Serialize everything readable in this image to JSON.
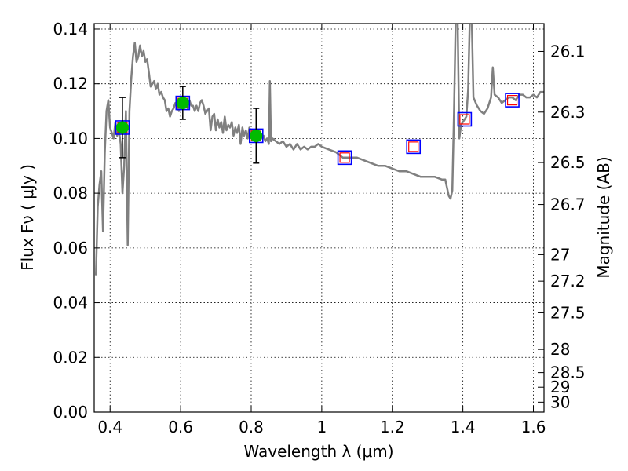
{
  "chart_data": {
    "type": "scatter",
    "xlabel": "Wavelength  λ (μm)",
    "ylabel": "Flux  Fν  ( μJy )",
    "ylabel_right": "Magnitude (AB)",
    "xlim": [
      0.355,
      1.63
    ],
    "ylim": [
      0.0,
      0.142
    ],
    "grid": true,
    "x_ticks": [
      {
        "value": 0.4,
        "label": "0.4"
      },
      {
        "value": 0.6,
        "label": "0.6"
      },
      {
        "value": 0.8,
        "label": "0.8"
      },
      {
        "value": 1.0,
        "label": "1"
      },
      {
        "value": 1.2,
        "label": "1.2"
      },
      {
        "value": 1.4,
        "label": "1.4"
      },
      {
        "value": 1.6,
        "label": "1.6"
      }
    ],
    "y_ticks": [
      {
        "value": 0.0,
        "label": "0.00"
      },
      {
        "value": 0.02,
        "label": "0.02"
      },
      {
        "value": 0.04,
        "label": "0.04"
      },
      {
        "value": 0.06,
        "label": "0.06"
      },
      {
        "value": 0.08,
        "label": "0.08"
      },
      {
        "value": 0.1,
        "label": "0.10"
      },
      {
        "value": 0.12,
        "label": "0.12"
      },
      {
        "value": 0.14,
        "label": "0.14"
      }
    ],
    "right_ticks": [
      {
        "mag": 26.1,
        "label": "26.1"
      },
      {
        "mag": 26.3,
        "label": "26.3"
      },
      {
        "mag": 26.5,
        "label": "26.5"
      },
      {
        "mag": 26.7,
        "label": "26.7"
      },
      {
        "mag": 27.0,
        "label": "27"
      },
      {
        "mag": 27.2,
        "label": "27.2"
      },
      {
        "mag": 27.5,
        "label": "27.5"
      },
      {
        "mag": 28.0,
        "label": "28"
      },
      {
        "mag": 28.5,
        "label": "28.5"
      },
      {
        "mag": 29.0,
        "label": "29"
      },
      {
        "mag": 30.0,
        "label": "30"
      }
    ],
    "colors": {
      "model": "#808080",
      "observed": "#00bb00",
      "box_blue": "#0000ff",
      "box_red": "#ff0000",
      "errorbar": "#000000"
    },
    "series": [
      {
        "style": "line",
        "values": [
          [
            0.36,
            0.05
          ],
          [
            0.365,
            0.075
          ],
          [
            0.37,
            0.083
          ],
          [
            0.375,
            0.088
          ],
          [
            0.38,
            0.066
          ],
          [
            0.385,
            0.095
          ],
          [
            0.39,
            0.11
          ],
          [
            0.395,
            0.114
          ],
          [
            0.4,
            0.104
          ],
          [
            0.405,
            0.102
          ],
          [
            0.41,
            0.1
          ],
          [
            0.415,
            0.106
          ],
          [
            0.42,
            0.101
          ],
          [
            0.425,
            0.103
          ],
          [
            0.43,
            0.098
          ],
          [
            0.435,
            0.08
          ],
          [
            0.44,
            0.09
          ],
          [
            0.445,
            0.11
          ],
          [
            0.45,
            0.061
          ],
          [
            0.455,
            0.11
          ],
          [
            0.46,
            0.122
          ],
          [
            0.465,
            0.13
          ],
          [
            0.47,
            0.135
          ],
          [
            0.475,
            0.128
          ],
          [
            0.48,
            0.13
          ],
          [
            0.485,
            0.134
          ],
          [
            0.49,
            0.13
          ],
          [
            0.495,
            0.132
          ],
          [
            0.5,
            0.128
          ],
          [
            0.505,
            0.129
          ],
          [
            0.51,
            0.124
          ],
          [
            0.515,
            0.119
          ],
          [
            0.52,
            0.12
          ],
          [
            0.525,
            0.121
          ],
          [
            0.53,
            0.118
          ],
          [
            0.535,
            0.12
          ],
          [
            0.54,
            0.116
          ],
          [
            0.545,
            0.117
          ],
          [
            0.55,
            0.115
          ],
          [
            0.555,
            0.114
          ],
          [
            0.56,
            0.11
          ],
          [
            0.565,
            0.111
          ],
          [
            0.57,
            0.108
          ],
          [
            0.575,
            0.11
          ],
          [
            0.58,
            0.111
          ],
          [
            0.585,
            0.113
          ],
          [
            0.59,
            0.112
          ],
          [
            0.595,
            0.11
          ],
          [
            0.6,
            0.113
          ],
          [
            0.605,
            0.111
          ],
          [
            0.61,
            0.114
          ],
          [
            0.615,
            0.113
          ],
          [
            0.62,
            0.111
          ],
          [
            0.625,
            0.114
          ],
          [
            0.63,
            0.112
          ],
          [
            0.635,
            0.112
          ],
          [
            0.64,
            0.11
          ],
          [
            0.645,
            0.112
          ],
          [
            0.65,
            0.11
          ],
          [
            0.655,
            0.113
          ],
          [
            0.66,
            0.114
          ],
          [
            0.665,
            0.112
          ],
          [
            0.67,
            0.109
          ],
          [
            0.675,
            0.11
          ],
          [
            0.68,
            0.111
          ],
          [
            0.685,
            0.103
          ],
          [
            0.69,
            0.108
          ],
          [
            0.695,
            0.109
          ],
          [
            0.7,
            0.103
          ],
          [
            0.705,
            0.107
          ],
          [
            0.71,
            0.104
          ],
          [
            0.715,
            0.106
          ],
          [
            0.72,
            0.102
          ],
          [
            0.725,
            0.108
          ],
          [
            0.73,
            0.103
          ],
          [
            0.735,
            0.105
          ],
          [
            0.74,
            0.104
          ],
          [
            0.745,
            0.106
          ],
          [
            0.75,
            0.101
          ],
          [
            0.755,
            0.104
          ],
          [
            0.76,
            0.102
          ],
          [
            0.765,
            0.105
          ],
          [
            0.77,
            0.098
          ],
          [
            0.775,
            0.104
          ],
          [
            0.78,
            0.101
          ],
          [
            0.785,
            0.103
          ],
          [
            0.79,
            0.1
          ],
          [
            0.795,
            0.104
          ],
          [
            0.8,
            0.102
          ],
          [
            0.805,
            0.103
          ],
          [
            0.81,
            0.101
          ],
          [
            0.815,
            0.102
          ],
          [
            0.82,
            0.1
          ],
          [
            0.825,
            0.102
          ],
          [
            0.83,
            0.1
          ],
          [
            0.835,
            0.101
          ],
          [
            0.84,
            0.099
          ],
          [
            0.845,
            0.1
          ],
          [
            0.85,
            0.098
          ],
          [
            0.853,
            0.121
          ],
          [
            0.856,
            0.099
          ],
          [
            0.86,
            0.1
          ],
          [
            0.87,
            0.099
          ],
          [
            0.88,
            0.098
          ],
          [
            0.89,
            0.099
          ],
          [
            0.9,
            0.097
          ],
          [
            0.91,
            0.098
          ],
          [
            0.92,
            0.096
          ],
          [
            0.93,
            0.098
          ],
          [
            0.94,
            0.096
          ],
          [
            0.95,
            0.097
          ],
          [
            0.96,
            0.096
          ],
          [
            0.97,
            0.097
          ],
          [
            0.98,
            0.097
          ],
          [
            0.99,
            0.098
          ],
          [
            1.0,
            0.097
          ],
          [
            1.02,
            0.096
          ],
          [
            1.04,
            0.095
          ],
          [
            1.06,
            0.093
          ],
          [
            1.08,
            0.093
          ],
          [
            1.1,
            0.093
          ],
          [
            1.12,
            0.092
          ],
          [
            1.14,
            0.091
          ],
          [
            1.16,
            0.09
          ],
          [
            1.18,
            0.09
          ],
          [
            1.2,
            0.089
          ],
          [
            1.22,
            0.088
          ],
          [
            1.24,
            0.088
          ],
          [
            1.26,
            0.087
          ],
          [
            1.28,
            0.086
          ],
          [
            1.3,
            0.086
          ],
          [
            1.32,
            0.086
          ],
          [
            1.34,
            0.085
          ],
          [
            1.35,
            0.085
          ],
          [
            1.36,
            0.079
          ],
          [
            1.365,
            0.078
          ],
          [
            1.37,
            0.081
          ],
          [
            1.375,
            0.11
          ],
          [
            1.38,
            0.145
          ],
          [
            1.385,
            0.145
          ],
          [
            1.39,
            0.1
          ],
          [
            1.395,
            0.105
          ],
          [
            1.4,
            0.106
          ],
          [
            1.405,
            0.107
          ],
          [
            1.41,
            0.108
          ],
          [
            1.415,
            0.118
          ],
          [
            1.42,
            0.145
          ],
          [
            1.425,
            0.145
          ],
          [
            1.43,
            0.115
          ],
          [
            1.44,
            0.112
          ],
          [
            1.45,
            0.11
          ],
          [
            1.46,
            0.109
          ],
          [
            1.47,
            0.111
          ],
          [
            1.48,
            0.115
          ],
          [
            1.485,
            0.126
          ],
          [
            1.49,
            0.116
          ],
          [
            1.5,
            0.115
          ],
          [
            1.51,
            0.113
          ],
          [
            1.52,
            0.114
          ],
          [
            1.53,
            0.115
          ],
          [
            1.54,
            0.115
          ],
          [
            1.55,
            0.114
          ],
          [
            1.56,
            0.116
          ],
          [
            1.57,
            0.116
          ],
          [
            1.58,
            0.115
          ],
          [
            1.59,
            0.115
          ],
          [
            1.6,
            0.116
          ],
          [
            1.61,
            0.115
          ],
          [
            1.62,
            0.117
          ],
          [
            1.63,
            0.117
          ]
        ]
      },
      {
        "style": "points-with-errorbars",
        "points": [
          {
            "x": 0.435,
            "y": 0.104,
            "err": 0.011
          },
          {
            "x": 0.606,
            "y": 0.113,
            "err": 0.006
          },
          {
            "x": 0.814,
            "y": 0.101,
            "err": 0.01
          }
        ]
      },
      {
        "style": "open-squares-blue",
        "points": [
          {
            "x": 0.435,
            "y": 0.104
          },
          {
            "x": 0.606,
            "y": 0.113
          },
          {
            "x": 0.814,
            "y": 0.101
          },
          {
            "x": 1.065,
            "y": 0.093
          },
          {
            "x": 1.26,
            "y": 0.097
          },
          {
            "x": 1.405,
            "y": 0.107
          },
          {
            "x": 1.54,
            "y": 0.114
          }
        ]
      },
      {
        "style": "open-squares-red",
        "points": [
          {
            "x": 0.435,
            "y": 0.104
          },
          {
            "x": 0.606,
            "y": 0.113
          },
          {
            "x": 0.814,
            "y": 0.101
          },
          {
            "x": 1.065,
            "y": 0.093
          },
          {
            "x": 1.26,
            "y": 0.097
          },
          {
            "x": 1.405,
            "y": 0.107
          },
          {
            "x": 1.54,
            "y": 0.114
          }
        ]
      }
    ]
  }
}
